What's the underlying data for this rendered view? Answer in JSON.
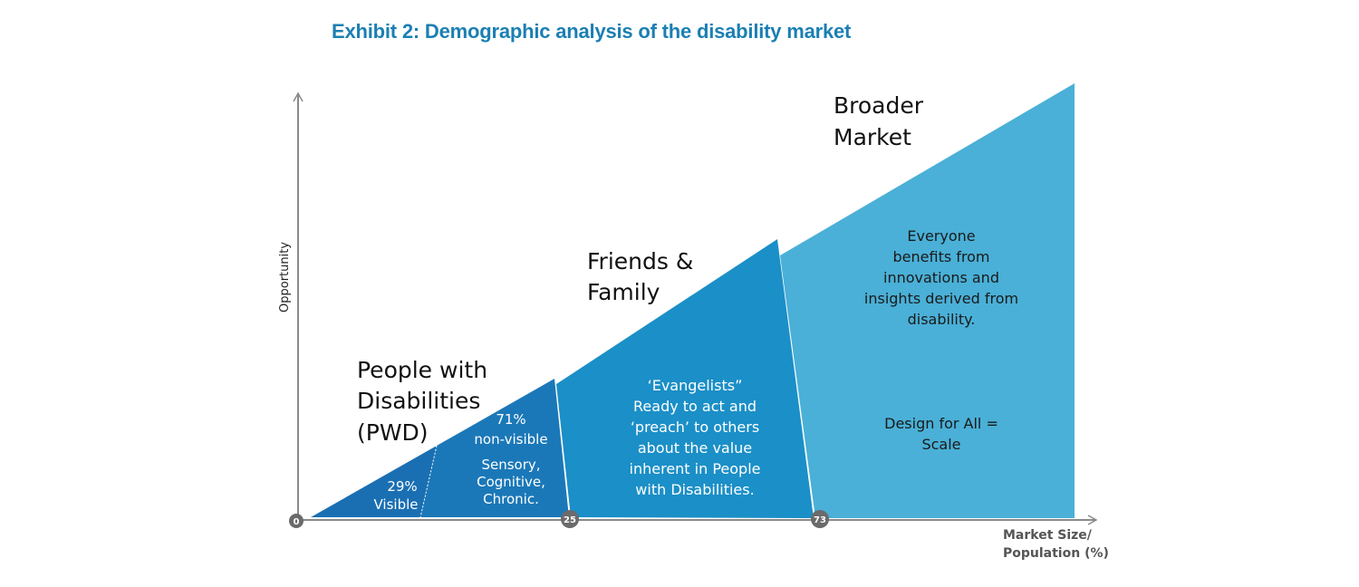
{
  "title": "Exhibit 2: Demographic analysis of the disability market",
  "axes": {
    "y_label": "Opportunity",
    "x_label_line1": "Market Size/",
    "x_label_line2": "Population (%)",
    "markers": [
      "0",
      "25",
      "73"
    ]
  },
  "segments": {
    "pwd": {
      "heading": [
        "People with",
        "Disabilities",
        "(PWD)"
      ],
      "visible": [
        "29%",
        "Visible"
      ],
      "non_visible": [
        "71%",
        "non-visible"
      ],
      "types": [
        "Sensory,",
        "Cognitive,",
        "Chronic."
      ],
      "colors": {
        "visible": "#1a6fb3",
        "non_visible": "#1b78b8"
      }
    },
    "friends_family": {
      "heading": [
        "Friends &",
        "Family"
      ],
      "body": [
        "‘Evangelists”",
        "Ready to act and",
        "‘preach’ to others",
        "about the value",
        "inherent in People",
        "with Disabilities."
      ],
      "color": "#1b8fc7"
    },
    "broader_market": {
      "heading": [
        "Broader",
        "Market"
      ],
      "body": [
        "Everyone",
        "benefits from",
        "innovations and",
        "insights derived from",
        "disability."
      ],
      "tagline": [
        "Design for All =",
        "Scale"
      ],
      "color": "#4ab0d7"
    }
  }
}
